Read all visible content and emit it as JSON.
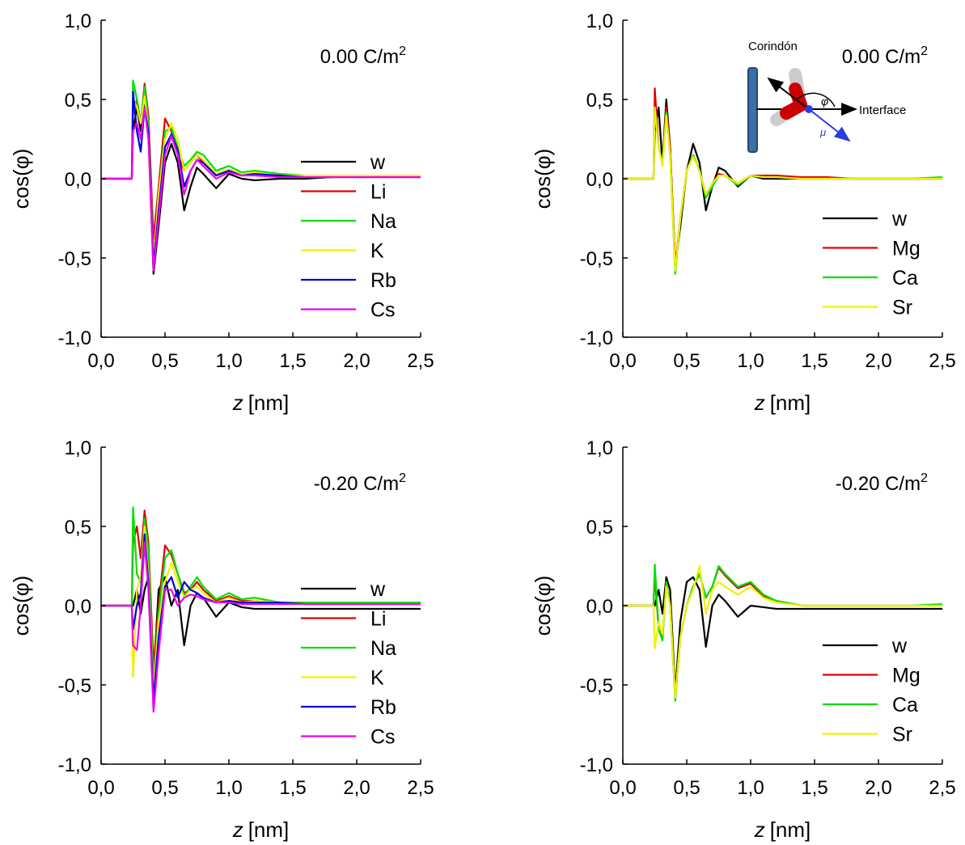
{
  "chart_data": [
    {
      "type": "line",
      "annotation": {
        "text": "0.00 C/m",
        "sup": "2"
      },
      "ylabel": "cos(φ)",
      "xlabel": {
        "var": "z",
        "unit": "[nm]"
      },
      "xlim": [
        0,
        2.5
      ],
      "ylim": [
        -1,
        1
      ],
      "xticks": [
        {
          "value": 0,
          "label": "0,0"
        },
        {
          "value": 0.5,
          "label": "0,5"
        },
        {
          "value": 1,
          "label": "1,0"
        },
        {
          "value": 1.5,
          "label": "1,5"
        },
        {
          "value": 2,
          "label": "2,0"
        },
        {
          "value": 2.5,
          "label": "2,5"
        }
      ],
      "yticks": [
        {
          "value": -1,
          "label": "-1,0"
        },
        {
          "value": -0.5,
          "label": "-0,5"
        },
        {
          "value": 0,
          "label": "0,0"
        },
        {
          "value": 0.5,
          "label": "0,5"
        },
        {
          "value": 1,
          "label": "1,0"
        }
      ],
      "x": [
        0,
        0.24,
        0.25,
        0.28,
        0.31,
        0.34,
        0.37,
        0.41,
        0.45,
        0.5,
        0.55,
        0.6,
        0.65,
        0.7,
        0.75,
        0.8,
        0.9,
        1.0,
        1.1,
        1.2,
        1.4,
        1.6,
        1.8,
        2.0,
        2.25,
        2.5
      ],
      "series": [
        {
          "name": "w",
          "color": "#000000",
          "values": [
            0,
            0,
            0.3,
            0.45,
            0.3,
            0.48,
            0.3,
            -0.6,
            -0.3,
            0.1,
            0.22,
            0.1,
            -0.2,
            -0.05,
            0.07,
            0.03,
            -0.06,
            0.03,
            0,
            -0.01,
            0,
            0,
            0.01,
            0.01,
            0.01,
            0.01
          ]
        },
        {
          "name": "Li",
          "color": "#e00000",
          "values": [
            0,
            0,
            0.4,
            0.5,
            0.35,
            0.6,
            0.4,
            -0.38,
            -0.05,
            0.38,
            0.3,
            0.15,
            0.05,
            0.1,
            0.15,
            0.1,
            0.02,
            0.05,
            0.03,
            0.04,
            0.02,
            0.02,
            0.02,
            0.02,
            0.02,
            0.02
          ]
        },
        {
          "name": "Na",
          "color": "#00e000",
          "values": [
            0,
            0,
            0.62,
            0.5,
            0.35,
            0.58,
            0.35,
            -0.5,
            -0.1,
            0.3,
            0.32,
            0.2,
            0.08,
            0.12,
            0.17,
            0.15,
            0.05,
            0.08,
            0.04,
            0.05,
            0.03,
            0.02,
            0.02,
            0.02,
            0.02,
            0.02
          ]
        },
        {
          "name": "K",
          "color": "#f0f000",
          "values": [
            0,
            0,
            0.5,
            0.45,
            0.35,
            0.52,
            0.3,
            -0.52,
            -0.1,
            0.25,
            0.35,
            0.25,
            0.05,
            0.1,
            0.15,
            0.12,
            0.03,
            0.06,
            0.03,
            0.04,
            0.02,
            0.02,
            0.02,
            0.02,
            0.02,
            0.02
          ]
        },
        {
          "name": "Rb",
          "color": "#0000e0",
          "values": [
            0,
            0,
            0.55,
            0.3,
            0.17,
            0.45,
            0.3,
            -0.55,
            -0.2,
            0.2,
            0.28,
            0.18,
            -0.05,
            0.05,
            0.12,
            0.1,
            0.02,
            0.05,
            0.02,
            0.03,
            0.02,
            0.01,
            0.01,
            0.01,
            0.01,
            0.01
          ]
        },
        {
          "name": "Cs",
          "color": "#f000f0",
          "values": [
            0,
            0,
            0.3,
            0.35,
            0.25,
            0.45,
            0.25,
            -0.58,
            -0.25,
            0.15,
            0.27,
            0.15,
            -0.1,
            0.05,
            0.12,
            0.08,
            0,
            0.04,
            0.02,
            0.02,
            0.01,
            0.01,
            0.01,
            0.01,
            0.01,
            0.01
          ]
        }
      ]
    },
    {
      "type": "line",
      "annotation": {
        "text": "0.00 C/m",
        "sup": "2"
      },
      "ylabel": "cos(φ)",
      "xlabel": {
        "var": "z",
        "unit": "[nm]"
      },
      "inset": {
        "wall": "Corindón",
        "axis": "Interface",
        "angle": "φ",
        "dipole": "μ"
      },
      "xlim": [
        0,
        2.5
      ],
      "ylim": [
        -1,
        1
      ],
      "xticks": [
        {
          "value": 0,
          "label": "0,0"
        },
        {
          "value": 0.5,
          "label": "0,5"
        },
        {
          "value": 1,
          "label": "1,0"
        },
        {
          "value": 1.5,
          "label": "1,5"
        },
        {
          "value": 2,
          "label": "2,0"
        },
        {
          "value": 2.5,
          "label": "2,5"
        }
      ],
      "yticks": [
        {
          "value": -1,
          "label": "-1,0"
        },
        {
          "value": -0.5,
          "label": "-0,5"
        },
        {
          "value": 0,
          "label": "0,0"
        },
        {
          "value": 0.5,
          "label": "0,5"
        },
        {
          "value": 1,
          "label": "1,0"
        }
      ],
      "x": [
        0,
        0.24,
        0.25,
        0.28,
        0.31,
        0.34,
        0.37,
        0.41,
        0.45,
        0.5,
        0.55,
        0.6,
        0.65,
        0.7,
        0.75,
        0.8,
        0.9,
        1.0,
        1.1,
        1.2,
        1.4,
        1.6,
        1.8,
        2.0,
        2.25,
        2.5
      ],
      "series": [
        {
          "name": "w",
          "color": "#000000",
          "values": [
            0,
            0,
            0.3,
            0.45,
            0.1,
            0.5,
            0.2,
            -0.55,
            -0.3,
            0.05,
            0.22,
            0.1,
            -0.2,
            -0.05,
            0.07,
            0.05,
            -0.05,
            0.02,
            0,
            0,
            0,
            0,
            0,
            0,
            0,
            0
          ]
        },
        {
          "name": "Mg",
          "color": "#e00000",
          "values": [
            0,
            0,
            0.57,
            0.2,
            0.1,
            0.45,
            0.2,
            -0.55,
            -0.25,
            0.05,
            0.15,
            0.05,
            -0.1,
            -0.03,
            0.03,
            0.02,
            -0.03,
            0.02,
            0.02,
            0.02,
            0.01,
            0.01,
            0,
            0,
            0,
            0
          ]
        },
        {
          "name": "Ca",
          "color": "#00e000",
          "values": [
            0,
            0,
            0.45,
            0.2,
            0.1,
            0.42,
            0.15,
            -0.6,
            -0.25,
            0.05,
            0.15,
            0.05,
            -0.12,
            -0.05,
            0.02,
            0.02,
            -0.04,
            0.02,
            0.01,
            0.01,
            0,
            0,
            0,
            0,
            0,
            0.01
          ]
        },
        {
          "name": "Sr",
          "color": "#f0f000",
          "values": [
            0,
            0,
            0.45,
            0.2,
            0.08,
            0.4,
            0.15,
            -0.58,
            -0.25,
            0.05,
            0.14,
            0.05,
            -0.1,
            -0.03,
            0.02,
            0.02,
            -0.03,
            0.02,
            0.01,
            0.01,
            0,
            0,
            0,
            0,
            0,
            0
          ]
        }
      ]
    },
    {
      "type": "line",
      "annotation": {
        "text": "-0.20 C/m",
        "sup": "2"
      },
      "ylabel": "cos(φ)",
      "xlabel": {
        "var": "z",
        "unit": "[nm]"
      },
      "xlim": [
        0,
        2.5
      ],
      "ylim": [
        -1,
        1
      ],
      "xticks": [
        {
          "value": 0,
          "label": "0,0"
        },
        {
          "value": 0.5,
          "label": "0,5"
        },
        {
          "value": 1,
          "label": "1,0"
        },
        {
          "value": 1.5,
          "label": "1,5"
        },
        {
          "value": 2,
          "label": "2,0"
        },
        {
          "value": 2.5,
          "label": "2,5"
        }
      ],
      "yticks": [
        {
          "value": -1,
          "label": "-1,0"
        },
        {
          "value": -0.5,
          "label": "-0,5"
        },
        {
          "value": 0,
          "label": "0,0"
        },
        {
          "value": 0.5,
          "label": "0,5"
        },
        {
          "value": 1,
          "label": "1,0"
        }
      ],
      "x": [
        0,
        0.24,
        0.25,
        0.28,
        0.31,
        0.34,
        0.37,
        0.41,
        0.45,
        0.5,
        0.55,
        0.6,
        0.65,
        0.7,
        0.75,
        0.8,
        0.9,
        1.0,
        1.1,
        1.2,
        1.4,
        1.6,
        1.8,
        2.0,
        2.25,
        2.5
      ],
      "series": [
        {
          "name": "w",
          "color": "#000000",
          "values": [
            0,
            0,
            0,
            0.1,
            -0.05,
            0.1,
            0.18,
            -0.45,
            0.1,
            0.18,
            0,
            0.1,
            -0.25,
            0,
            0.08,
            0.05,
            -0.07,
            0.02,
            -0.01,
            -0.02,
            -0.02,
            -0.02,
            -0.02,
            -0.02,
            -0.02,
            -0.02
          ]
        },
        {
          "name": "Li",
          "color": "#e00000",
          "values": [
            0,
            0,
            0.4,
            0.5,
            0.3,
            0.6,
            0.4,
            -0.38,
            0,
            0.38,
            0.32,
            0.2,
            0.08,
            0.1,
            0.15,
            0.1,
            0.03,
            0.06,
            0.03,
            0.03,
            0.02,
            0.02,
            0.02,
            0.02,
            0.02,
            0.02
          ]
        },
        {
          "name": "Na",
          "color": "#00e000",
          "values": [
            0,
            0,
            0.62,
            0.2,
            0.15,
            0.55,
            0.35,
            -0.5,
            -0.05,
            0.3,
            0.35,
            0.2,
            0.06,
            0.12,
            0.18,
            0.12,
            0.04,
            0.08,
            0.04,
            0.05,
            0.02,
            0.02,
            0.02,
            0.02,
            0.02,
            0.02
          ]
        },
        {
          "name": "K",
          "color": "#f0f000",
          "values": [
            0,
            0,
            -0.45,
            0.1,
            0.18,
            0.5,
            0.2,
            -0.55,
            -0.1,
            0.15,
            0.27,
            0.15,
            0.05,
            0.1,
            0.12,
            0.08,
            0.02,
            0.05,
            0.02,
            0.03,
            0.02,
            0.01,
            0.01,
            0.01,
            0.01,
            0.01
          ]
        },
        {
          "name": "Rb",
          "color": "#0000e0",
          "values": [
            0,
            0,
            -0.15,
            0,
            0.08,
            0.45,
            0.15,
            -0.6,
            -0.2,
            0.12,
            0.18,
            0.05,
            0.15,
            0.1,
            0.08,
            0.05,
            0.02,
            0.03,
            0.02,
            0.02,
            0.02,
            0.01,
            0.01,
            0.01,
            0.01,
            0.01
          ]
        },
        {
          "name": "Cs",
          "color": "#f000f0",
          "values": [
            0,
            0,
            -0.25,
            -0.28,
            0,
            0.4,
            0.1,
            -0.67,
            -0.3,
            0.1,
            0.1,
            0,
            0.05,
            0.07,
            0.06,
            0.04,
            0.02,
            0.02,
            0.01,
            0.01,
            0.01,
            0.01,
            0.01,
            0.01,
            0.01,
            0.01
          ]
        }
      ]
    },
    {
      "type": "line",
      "annotation": {
        "text": "-0.20 C/m",
        "sup": "2"
      },
      "ylabel": "cos(φ)",
      "xlabel": {
        "var": "z",
        "unit": "[nm]"
      },
      "xlim": [
        0,
        2.5
      ],
      "ylim": [
        -1,
        1
      ],
      "xticks": [
        {
          "value": 0,
          "label": "0,0"
        },
        {
          "value": 0.5,
          "label": "0,5"
        },
        {
          "value": 1,
          "label": "1,0"
        },
        {
          "value": 1.5,
          "label": "1,5"
        },
        {
          "value": 2,
          "label": "2,0"
        },
        {
          "value": 2.5,
          "label": "2,5"
        }
      ],
      "yticks": [
        {
          "value": -1,
          "label": "-1,0"
        },
        {
          "value": -0.5,
          "label": "-0,5"
        },
        {
          "value": 0,
          "label": "0,0"
        },
        {
          "value": 0.5,
          "label": "0,5"
        },
        {
          "value": 1,
          "label": "1,0"
        }
      ],
      "x": [
        0,
        0.24,
        0.25,
        0.28,
        0.31,
        0.34,
        0.37,
        0.41,
        0.45,
        0.5,
        0.55,
        0.6,
        0.65,
        0.7,
        0.75,
        0.8,
        0.9,
        1.0,
        1.1,
        1.2,
        1.4,
        1.6,
        1.8,
        2.0,
        2.25,
        2.5
      ],
      "series": [
        {
          "name": "w",
          "color": "#000000",
          "values": [
            0,
            0,
            0,
            0.1,
            -0.05,
            0.18,
            0.1,
            -0.55,
            -0.1,
            0.15,
            0.18,
            0.1,
            -0.26,
            0,
            0.07,
            0.03,
            -0.07,
            0,
            -0.01,
            -0.02,
            -0.02,
            -0.02,
            -0.02,
            -0.02,
            -0.02,
            -0.02
          ]
        },
        {
          "name": "Mg",
          "color": "#e00000",
          "values": [
            0,
            0,
            0.2,
            -0.15,
            -0.2,
            0.14,
            0,
            -0.58,
            -0.2,
            0,
            0.12,
            0.2,
            0.05,
            0.12,
            0.24,
            0.19,
            0.11,
            0.14,
            0.06,
            0.03,
            0,
            0,
            0,
            0,
            0,
            0
          ]
        },
        {
          "name": "Ca",
          "color": "#00e000",
          "values": [
            0,
            0,
            0.26,
            -0.15,
            -0.22,
            0.15,
            0,
            -0.6,
            -0.2,
            0,
            0.12,
            0.2,
            0.05,
            0.12,
            0.25,
            0.2,
            0.12,
            0.15,
            0.07,
            0.03,
            0,
            0,
            0,
            0,
            0,
            0.01
          ]
        },
        {
          "name": "Sr",
          "color": "#f0f000",
          "values": [
            0,
            0,
            -0.27,
            -0.1,
            -0.18,
            0.12,
            0,
            -0.58,
            -0.2,
            0,
            0.1,
            0.25,
            -0.05,
            0.1,
            0.15,
            0.12,
            0.07,
            0.12,
            0.05,
            0.02,
            0,
            0,
            0,
            0,
            0,
            0
          ]
        }
      ]
    }
  ]
}
